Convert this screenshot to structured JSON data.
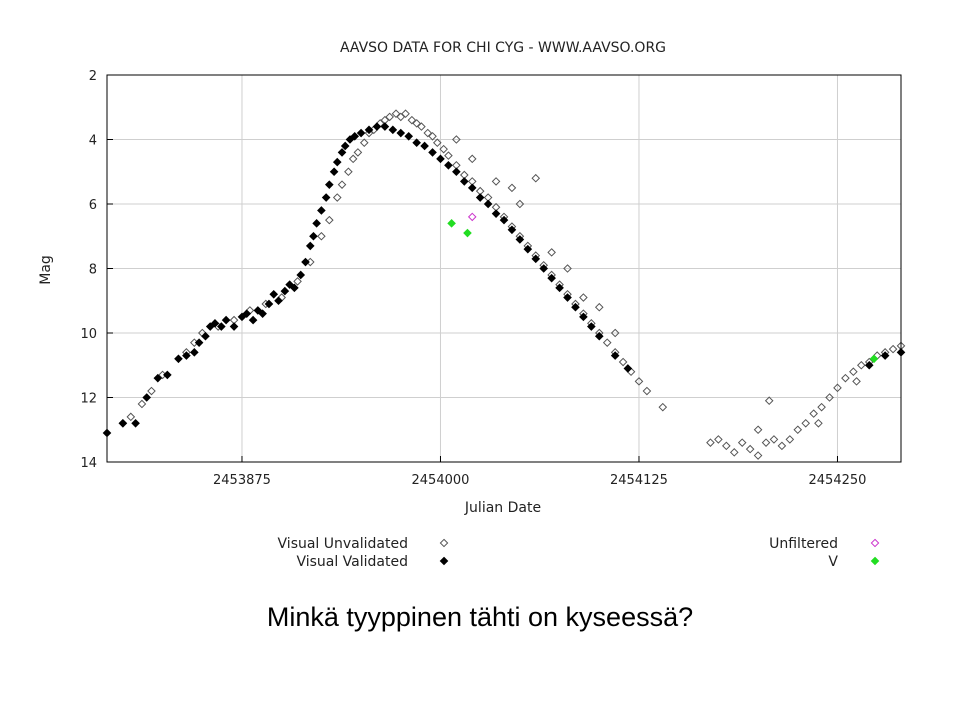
{
  "chart_data": {
    "type": "scatter",
    "title": "AAVSO DATA FOR CHI CYG - WWW.AAVSO.ORG",
    "xlabel": "Julian Date",
    "ylabel": "Mag",
    "xlim": [
      2453790,
      2454290
    ],
    "ylim": [
      2,
      14
    ],
    "y_inverted": true,
    "x_ticks": [
      2453875,
      2454000,
      2454125,
      2454250
    ],
    "y_ticks": [
      2,
      4,
      6,
      8,
      10,
      12,
      14
    ],
    "grid": true,
    "legend_position": "bottom",
    "series": [
      {
        "name": "Visual Unvalidated",
        "marker": "open-diamond",
        "color": "#555555",
        "points": [
          [
            2453800,
            12.8
          ],
          [
            2453805,
            12.6
          ],
          [
            2453812,
            12.2
          ],
          [
            2453818,
            11.8
          ],
          [
            2453825,
            11.3
          ],
          [
            2453840,
            10.6
          ],
          [
            2453845,
            10.3
          ],
          [
            2453850,
            10.0
          ],
          [
            2453860,
            9.8
          ],
          [
            2453870,
            9.6
          ],
          [
            2453880,
            9.3
          ],
          [
            2453890,
            9.1
          ],
          [
            2453900,
            8.9
          ],
          [
            2453910,
            8.4
          ],
          [
            2453918,
            7.8
          ],
          [
            2453925,
            7.0
          ],
          [
            2453930,
            6.5
          ],
          [
            2453935,
            5.8
          ],
          [
            2453938,
            5.4
          ],
          [
            2453942,
            5.0
          ],
          [
            2453945,
            4.6
          ],
          [
            2453948,
            4.4
          ],
          [
            2453952,
            4.1
          ],
          [
            2453955,
            3.8
          ],
          [
            2453958,
            3.7
          ],
          [
            2453962,
            3.5
          ],
          [
            2453965,
            3.4
          ],
          [
            2453968,
            3.3
          ],
          [
            2453972,
            3.2
          ],
          [
            2453975,
            3.3
          ],
          [
            2453978,
            3.2
          ],
          [
            2453982,
            3.4
          ],
          [
            2453985,
            3.5
          ],
          [
            2453988,
            3.6
          ],
          [
            2453992,
            3.8
          ],
          [
            2453995,
            3.9
          ],
          [
            2453998,
            4.1
          ],
          [
            2454002,
            4.3
          ],
          [
            2454005,
            4.5
          ],
          [
            2454010,
            4.8
          ],
          [
            2454015,
            5.1
          ],
          [
            2454020,
            5.3
          ],
          [
            2454025,
            5.6
          ],
          [
            2454030,
            5.8
          ],
          [
            2454035,
            6.1
          ],
          [
            2454040,
            6.4
          ],
          [
            2454045,
            6.7
          ],
          [
            2454050,
            7.0
          ],
          [
            2454055,
            7.3
          ],
          [
            2454060,
            7.6
          ],
          [
            2454065,
            7.9
          ],
          [
            2454070,
            8.2
          ],
          [
            2454075,
            8.5
          ],
          [
            2454080,
            8.8
          ],
          [
            2454085,
            9.1
          ],
          [
            2454090,
            9.4
          ],
          [
            2454095,
            9.7
          ],
          [
            2454100,
            10.0
          ],
          [
            2454105,
            10.3
          ],
          [
            2454110,
            10.6
          ],
          [
            2454115,
            10.9
          ],
          [
            2454120,
            11.2
          ],
          [
            2454125,
            11.5
          ],
          [
            2454130,
            11.8
          ],
          [
            2454140,
            12.3
          ],
          [
            2454035,
            5.3
          ],
          [
            2454045,
            5.5
          ],
          [
            2454060,
            5.2
          ],
          [
            2454010,
            4.0
          ],
          [
            2454020,
            4.6
          ],
          [
            2454050,
            6.0
          ],
          [
            2454070,
            7.5
          ],
          [
            2454080,
            8.0
          ],
          [
            2454090,
            8.9
          ],
          [
            2454100,
            9.2
          ],
          [
            2454110,
            10.0
          ],
          [
            2454170,
            13.4
          ],
          [
            2454175,
            13.3
          ],
          [
            2454180,
            13.5
          ],
          [
            2454185,
            13.7
          ],
          [
            2454190,
            13.4
          ],
          [
            2454195,
            13.6
          ],
          [
            2454200,
            13.8
          ],
          [
            2454205,
            13.4
          ],
          [
            2454210,
            13.3
          ],
          [
            2454215,
            13.5
          ],
          [
            2454220,
            13.3
          ],
          [
            2454225,
            13.0
          ],
          [
            2454230,
            12.8
          ],
          [
            2454235,
            12.5
          ],
          [
            2454240,
            12.3
          ],
          [
            2454245,
            12.0
          ],
          [
            2454250,
            11.7
          ],
          [
            2454255,
            11.4
          ],
          [
            2454260,
            11.2
          ],
          [
            2454265,
            11.0
          ],
          [
            2454270,
            10.9
          ],
          [
            2454275,
            10.7
          ],
          [
            2454280,
            10.6
          ],
          [
            2454285,
            10.5
          ],
          [
            2454290,
            10.4
          ],
          [
            2454207,
            12.1
          ],
          [
            2454200,
            13.0
          ],
          [
            2454238,
            12.8
          ],
          [
            2454262,
            11.5
          ]
        ]
      },
      {
        "name": "Visual Validated",
        "marker": "filled-diamond",
        "color": "#000000",
        "points": [
          [
            2453790,
            13.1
          ],
          [
            2453800,
            12.8
          ],
          [
            2453808,
            12.8
          ],
          [
            2453815,
            12.0
          ],
          [
            2453822,
            11.4
          ],
          [
            2453828,
            11.3
          ],
          [
            2453835,
            10.8
          ],
          [
            2453840,
            10.7
          ],
          [
            2453845,
            10.6
          ],
          [
            2453848,
            10.3
          ],
          [
            2453852,
            10.1
          ],
          [
            2453855,
            9.8
          ],
          [
            2453858,
            9.7
          ],
          [
            2453862,
            9.8
          ],
          [
            2453865,
            9.6
          ],
          [
            2453870,
            9.8
          ],
          [
            2453875,
            9.5
          ],
          [
            2453878,
            9.4
          ],
          [
            2453882,
            9.6
          ],
          [
            2453885,
            9.3
          ],
          [
            2453888,
            9.4
          ],
          [
            2453892,
            9.1
          ],
          [
            2453895,
            8.8
          ],
          [
            2453898,
            9.0
          ],
          [
            2453902,
            8.7
          ],
          [
            2453905,
            8.5
          ],
          [
            2453908,
            8.6
          ],
          [
            2453912,
            8.2
          ],
          [
            2453915,
            7.8
          ],
          [
            2453918,
            7.3
          ],
          [
            2453920,
            7.0
          ],
          [
            2453922,
            6.6
          ],
          [
            2453925,
            6.2
          ],
          [
            2453928,
            5.8
          ],
          [
            2453930,
            5.4
          ],
          [
            2453933,
            5.0
          ],
          [
            2453935,
            4.7
          ],
          [
            2453938,
            4.4
          ],
          [
            2453940,
            4.2
          ],
          [
            2453943,
            4.0
          ],
          [
            2453946,
            3.9
          ],
          [
            2453950,
            3.8
          ],
          [
            2453955,
            3.7
          ],
          [
            2453960,
            3.6
          ],
          [
            2453965,
            3.6
          ],
          [
            2453970,
            3.7
          ],
          [
            2453975,
            3.8
          ],
          [
            2453980,
            3.9
          ],
          [
            2453985,
            4.1
          ],
          [
            2453990,
            4.2
          ],
          [
            2453995,
            4.4
          ],
          [
            2454000,
            4.6
          ],
          [
            2454005,
            4.8
          ],
          [
            2454010,
            5.0
          ],
          [
            2454015,
            5.3
          ],
          [
            2454020,
            5.5
          ],
          [
            2454025,
            5.8
          ],
          [
            2454030,
            6.0
          ],
          [
            2454035,
            6.3
          ],
          [
            2454040,
            6.5
          ],
          [
            2454045,
            6.8
          ],
          [
            2454050,
            7.1
          ],
          [
            2454055,
            7.4
          ],
          [
            2454060,
            7.7
          ],
          [
            2454065,
            8.0
          ],
          [
            2454070,
            8.3
          ],
          [
            2454075,
            8.6
          ],
          [
            2454080,
            8.9
          ],
          [
            2454085,
            9.2
          ],
          [
            2454090,
            9.5
          ],
          [
            2454095,
            9.8
          ],
          [
            2454100,
            10.1
          ],
          [
            2454110,
            10.7
          ],
          [
            2454118,
            11.1
          ],
          [
            2454270,
            11.0
          ],
          [
            2454280,
            10.7
          ],
          [
            2454290,
            10.6
          ]
        ]
      },
      {
        "name": "Unfiltered",
        "marker": "open-diamond",
        "color": "#cc33cc",
        "points": [
          [
            2454020,
            6.4
          ]
        ]
      },
      {
        "name": "V",
        "marker": "filled-diamond",
        "color": "#22dd22",
        "points": [
          [
            2454007,
            6.6
          ],
          [
            2454017,
            6.9
          ],
          [
            2454273,
            10.8
          ]
        ]
      }
    ]
  },
  "question": "Minkä tyyppinen tähti on kyseessä?"
}
